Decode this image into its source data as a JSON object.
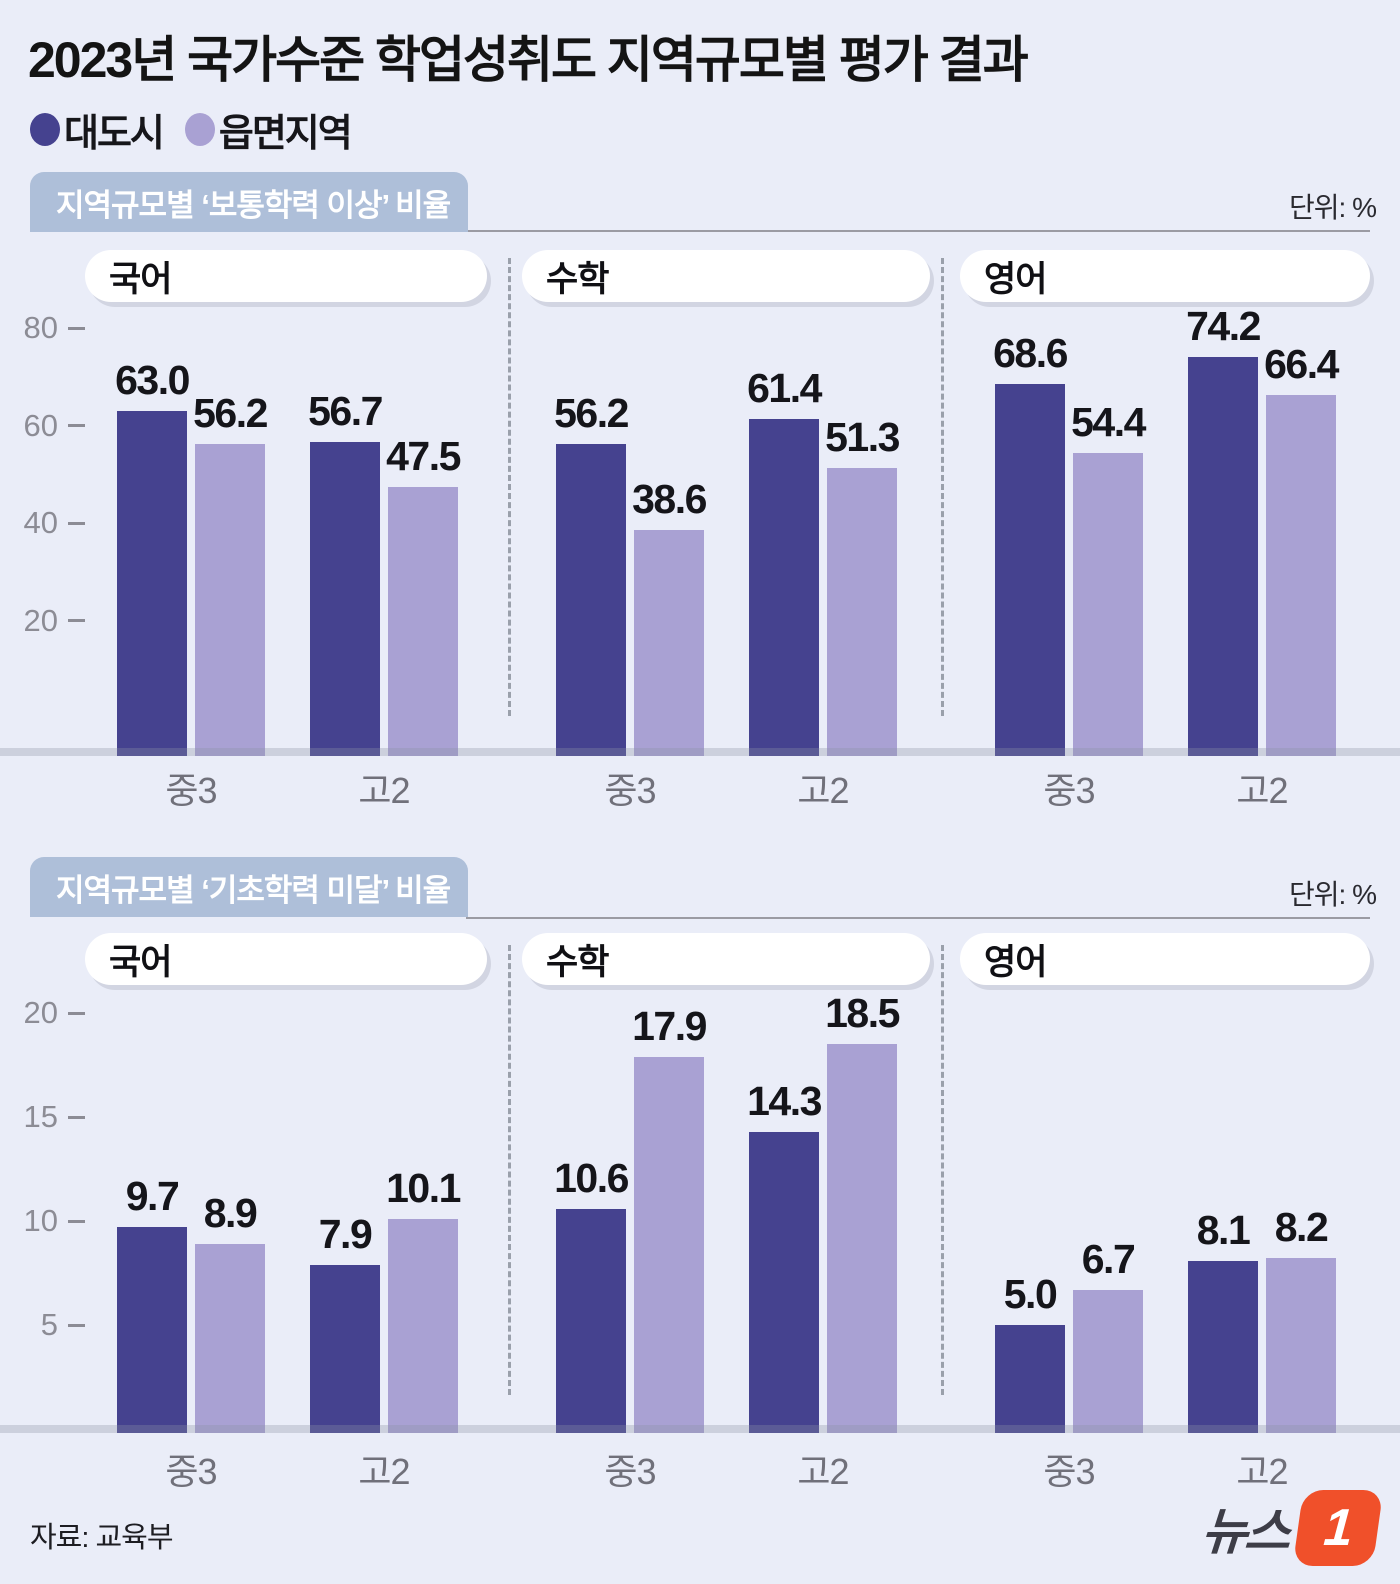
{
  "title": "2023년 국가수준 학업성취도 지역규모별 평가 결과",
  "legend": [
    {
      "label": "대도시",
      "color": "#45428f"
    },
    {
      "label": "읍면지역",
      "color": "#a9a1d3"
    }
  ],
  "source": "자료: 교육부",
  "logo": {
    "text": "뉴스",
    "one": "1",
    "color": "#f0502a"
  },
  "chart_data": [
    {
      "type": "bar",
      "title": "지역규모별 ‘보통학력 이상’ 비율",
      "unit": "단위: %",
      "series_names": [
        "대도시",
        "읍면지역"
      ],
      "categories": [
        "중3",
        "고2"
      ],
      "yticks": [
        20,
        40,
        60,
        80
      ],
      "ylim": [
        0,
        88
      ],
      "grid": false,
      "subjects": [
        {
          "label": "국어",
          "values": {
            "중3": [
              63.0,
              56.2
            ],
            "고2": [
              56.7,
              47.5
            ]
          }
        },
        {
          "label": "수학",
          "values": {
            "중3": [
              56.2,
              38.6
            ],
            "고2": [
              61.4,
              51.3
            ]
          }
        },
        {
          "label": "영어",
          "values": {
            "중3": [
              68.6,
              54.4
            ],
            "고2": [
              74.2,
              66.4
            ]
          }
        }
      ]
    },
    {
      "type": "bar",
      "title": "지역규모별 ‘기초학력 미달’ 비율",
      "unit": "단위: %",
      "series_names": [
        "대도시",
        "읍면지역"
      ],
      "categories": [
        "중3",
        "고2"
      ],
      "yticks": [
        5,
        10,
        15,
        20
      ],
      "ylim": [
        0,
        21
      ],
      "grid": false,
      "subjects": [
        {
          "label": "국어",
          "values": {
            "중3": [
              9.7,
              8.9
            ],
            "고2": [
              7.9,
              10.1
            ]
          }
        },
        {
          "label": "수학",
          "values": {
            "중3": [
              10.6,
              17.9
            ],
            "고2": [
              14.3,
              18.5
            ]
          }
        },
        {
          "label": "영어",
          "values": {
            "중3": [
              5.0,
              6.7
            ],
            "고2": [
              8.1,
              8.2
            ]
          }
        }
      ]
    }
  ]
}
